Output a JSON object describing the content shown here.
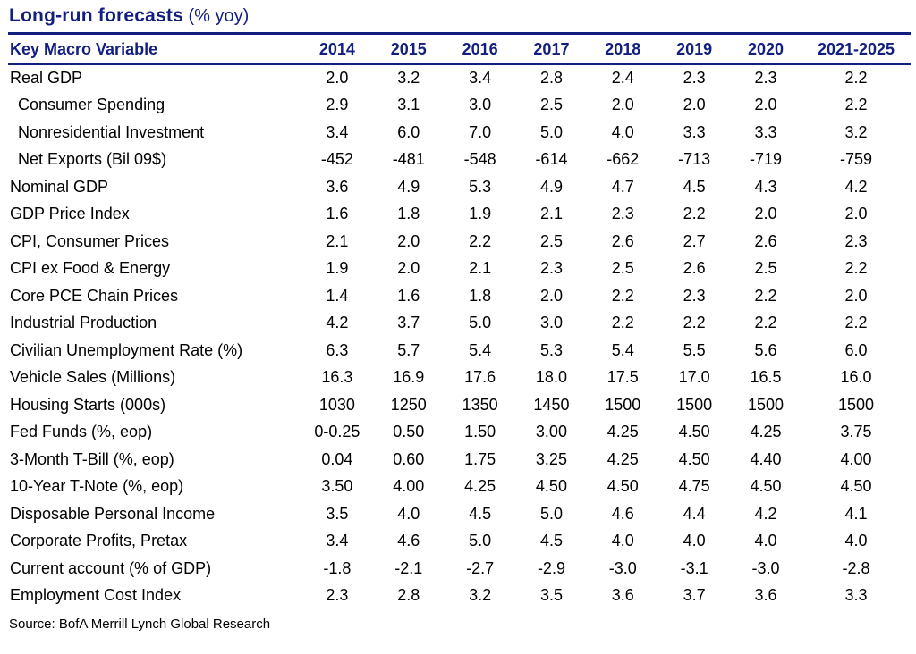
{
  "title": {
    "main": "Long-run forecasts",
    "suffix": " (% yoy)"
  },
  "source_note": "Source: BofA Merrill Lynch Global Research",
  "colors": {
    "navy": "#131f7e",
    "body_text": "#000000"
  },
  "chart_data": {
    "type": "table",
    "title": "Long-run forecasts (% yoy)",
    "columns": [
      "Key Macro Variable",
      "2014",
      "2015",
      "2016",
      "2017",
      "2018",
      "2019",
      "2020",
      "2021-2025"
    ],
    "rows": [
      {
        "label": "Real GDP",
        "indent": false,
        "values": [
          "2.0",
          "3.2",
          "3.4",
          "2.8",
          "2.4",
          "2.3",
          "2.3",
          "2.2"
        ]
      },
      {
        "label": "Consumer Spending",
        "indent": true,
        "values": [
          "2.9",
          "3.1",
          "3.0",
          "2.5",
          "2.0",
          "2.0",
          "2.0",
          "2.2"
        ]
      },
      {
        "label": "Nonresidential Investment",
        "indent": true,
        "values": [
          "3.4",
          "6.0",
          "7.0",
          "5.0",
          "4.0",
          "3.3",
          "3.3",
          "3.2"
        ]
      },
      {
        "label": "Net Exports (Bil 09$)",
        "indent": true,
        "values": [
          "-452",
          "-481",
          "-548",
          "-614",
          "-662",
          "-713",
          "-719",
          "-759"
        ]
      },
      {
        "label": "Nominal GDP",
        "indent": false,
        "values": [
          "3.6",
          "4.9",
          "5.3",
          "4.9",
          "4.7",
          "4.5",
          "4.3",
          "4.2"
        ]
      },
      {
        "label": "GDP Price Index",
        "indent": false,
        "values": [
          "1.6",
          "1.8",
          "1.9",
          "2.1",
          "2.3",
          "2.2",
          "2.0",
          "2.0"
        ]
      },
      {
        "label": "CPI, Consumer Prices",
        "indent": false,
        "values": [
          "2.1",
          "2.0",
          "2.2",
          "2.5",
          "2.6",
          "2.7",
          "2.6",
          "2.3"
        ]
      },
      {
        "label": "CPI ex Food & Energy",
        "indent": false,
        "values": [
          "1.9",
          "2.0",
          "2.1",
          "2.3",
          "2.5",
          "2.6",
          "2.5",
          "2.2"
        ]
      },
      {
        "label": "Core PCE Chain Prices",
        "indent": false,
        "values": [
          "1.4",
          "1.6",
          "1.8",
          "2.0",
          "2.2",
          "2.3",
          "2.2",
          "2.0"
        ]
      },
      {
        "label": "Industrial Production",
        "indent": false,
        "values": [
          "4.2",
          "3.7",
          "5.0",
          "3.0",
          "2.2",
          "2.2",
          "2.2",
          "2.2"
        ]
      },
      {
        "label": "Civilian Unemployment Rate (%)",
        "indent": false,
        "values": [
          "6.3",
          "5.7",
          "5.4",
          "5.3",
          "5.4",
          "5.5",
          "5.6",
          "6.0"
        ]
      },
      {
        "label": "Vehicle Sales (Millions)",
        "indent": false,
        "values": [
          "16.3",
          "16.9",
          "17.6",
          "18.0",
          "17.5",
          "17.0",
          "16.5",
          "16.0"
        ]
      },
      {
        "label": "Housing Starts (000s)",
        "indent": false,
        "values": [
          "1030",
          "1250",
          "1350",
          "1450",
          "1500",
          "1500",
          "1500",
          "1500"
        ]
      },
      {
        "label": "Fed Funds (%, eop)",
        "indent": false,
        "values": [
          "0-0.25",
          "0.50",
          "1.50",
          "3.00",
          "4.25",
          "4.50",
          "4.25",
          "3.75"
        ]
      },
      {
        "label": "3-Month T-Bill (%, eop)",
        "indent": false,
        "values": [
          "0.04",
          "0.60",
          "1.75",
          "3.25",
          "4.25",
          "4.50",
          "4.40",
          "4.00"
        ]
      },
      {
        "label": "10-Year T-Note (%, eop)",
        "indent": false,
        "values": [
          "3.50",
          "4.00",
          "4.25",
          "4.50",
          "4.50",
          "4.75",
          "4.50",
          "4.50"
        ]
      },
      {
        "label": "Disposable Personal Income",
        "indent": false,
        "values": [
          "3.5",
          "4.0",
          "4.5",
          "5.0",
          "4.6",
          "4.4",
          "4.2",
          "4.1"
        ]
      },
      {
        "label": "Corporate Profits, Pretax",
        "indent": false,
        "values": [
          "3.4",
          "4.6",
          "5.0",
          "4.5",
          "4.0",
          "4.0",
          "4.0",
          "4.0"
        ]
      },
      {
        "label": "Current account (% of GDP)",
        "indent": false,
        "values": [
          "-1.8",
          "-2.1",
          "-2.7",
          "-2.9",
          "-3.0",
          "-3.1",
          "-3.0",
          "-2.8"
        ]
      },
      {
        "label": "Employment Cost Index",
        "indent": false,
        "values": [
          "2.3",
          "2.8",
          "3.2",
          "3.5",
          "3.6",
          "3.7",
          "3.6",
          "3.3"
        ]
      }
    ]
  }
}
